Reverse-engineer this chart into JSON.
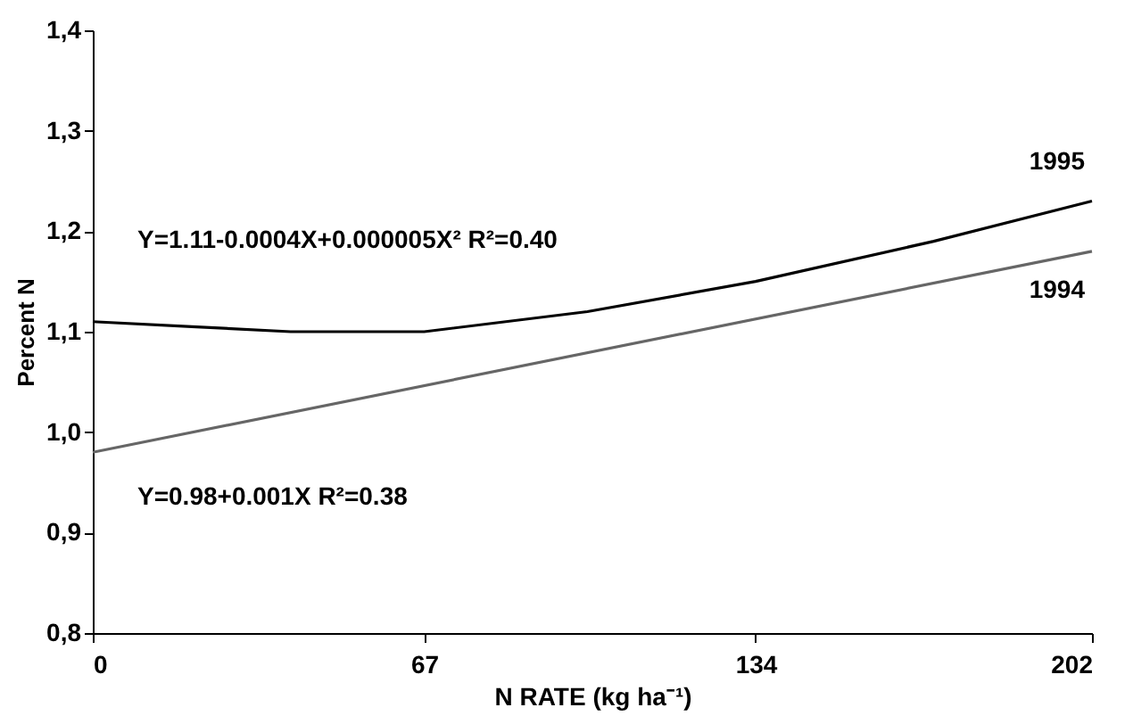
{
  "chart_data": {
    "type": "line",
    "xlabel": "N RATE (kg ha⁻¹)",
    "ylabel": "Percent N",
    "xlim": [
      0,
      202
    ],
    "xticks": [
      0,
      67,
      134,
      202
    ],
    "ylim": [
      0.8,
      1.4
    ],
    "yticks": [
      {
        "value": 0.8,
        "label": "0,8"
      },
      {
        "value": 0.9,
        "label": "0,9"
      },
      {
        "value": 1.0,
        "label": "1,0"
      },
      {
        "value": 1.1,
        "label": "1,1"
      },
      {
        "value": 1.2,
        "label": "1,2"
      },
      {
        "value": 1.3,
        "label": "1,3"
      },
      {
        "value": 1.4,
        "label": "1,4"
      }
    ],
    "grid": false,
    "marker": "none",
    "line_style": "solid",
    "series": [
      {
        "name": "1995",
        "color": "#000000",
        "x": [
          0,
          20,
          40,
          67,
          100,
          134,
          170,
          202
        ],
        "values": [
          1.11,
          1.105,
          1.1,
          1.1,
          1.12,
          1.15,
          1.19,
          1.23
        ]
      },
      {
        "name": "1994",
        "color": "#666666",
        "x": [
          0,
          202
        ],
        "values": [
          0.98,
          1.18
        ]
      }
    ],
    "annotations": [
      "Y=1.11-0.0004X+0.000005X² R²=0.40",
      "Y=0.98+0.001X  R²=0.38"
    ]
  }
}
